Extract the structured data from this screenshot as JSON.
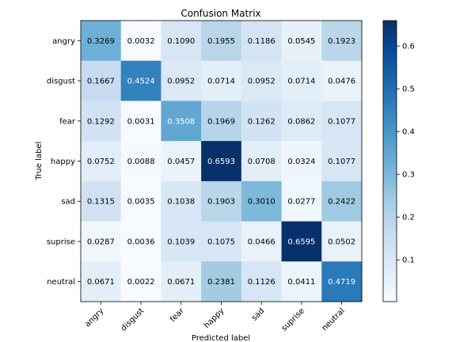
{
  "chart_data": {
    "type": "heatmap",
    "title": "Confusion Matrix",
    "xlabel": "Predicted label",
    "ylabel": "True label",
    "x_categories": [
      "angry",
      "disgust",
      "fear",
      "happy",
      "sad",
      "suprise",
      "neutral"
    ],
    "y_categories": [
      "angry",
      "disgust",
      "fear",
      "happy",
      "sad",
      "suprise",
      "neutral"
    ],
    "values": [
      [
        0.3269,
        0.0032,
        0.109,
        0.1955,
        0.1186,
        0.0545,
        0.1923
      ],
      [
        0.1667,
        0.4524,
        0.0952,
        0.0714,
        0.0952,
        0.0714,
        0.0476
      ],
      [
        0.1292,
        0.0031,
        0.3508,
        0.1969,
        0.1262,
        0.0862,
        0.1077
      ],
      [
        0.0752,
        0.0088,
        0.0457,
        0.6593,
        0.0708,
        0.0324,
        0.1077
      ],
      [
        0.1315,
        0.0035,
        0.1038,
        0.1903,
        0.301,
        0.0277,
        0.2422
      ],
      [
        0.0287,
        0.0036,
        0.1039,
        0.1075,
        0.0466,
        0.6595,
        0.0502
      ],
      [
        0.0671,
        0.0022,
        0.0671,
        0.2381,
        0.1126,
        0.0411,
        0.4719
      ]
    ],
    "value_labels": [
      [
        "0.3269",
        "0.0032",
        "0.1090",
        "0.1955",
        "0.1186",
        "0.0545",
        "0.1923"
      ],
      [
        "0.1667",
        "0.4524",
        "0.0952",
        "0.0714",
        "0.0952",
        "0.0714",
        "0.0476"
      ],
      [
        "0.1292",
        "0.0031",
        "0.3508",
        "0.1969",
        "0.1262",
        "0.0862",
        "0.1077"
      ],
      [
        "0.0752",
        "0.0088",
        "0.0457",
        "0.6593",
        "0.0708",
        "0.0324",
        "0.1077"
      ],
      [
        "0.1315",
        "0.0035",
        "0.1038",
        "0.1903",
        "0.3010",
        "0.0277",
        "0.2422"
      ],
      [
        "0.0287",
        "0.0036",
        "0.1039",
        "0.1075",
        "0.0466",
        "0.6595",
        "0.0502"
      ],
      [
        "0.0671",
        "0.0022",
        "0.0671",
        "0.2381",
        "0.1126",
        "0.0411",
        "0.4719"
      ]
    ],
    "colormap": "Blues",
    "colorbar": {
      "range": [
        0.0022,
        0.6595
      ],
      "ticks": [
        0.1,
        0.2,
        0.3,
        0.4,
        0.5,
        0.6
      ],
      "tick_labels": [
        "0.1",
        "0.2",
        "0.3",
        "0.4",
        "0.5",
        "0.6"
      ]
    },
    "text_threshold": 0.33,
    "grid": false,
    "legend": "colorbar-right"
  }
}
